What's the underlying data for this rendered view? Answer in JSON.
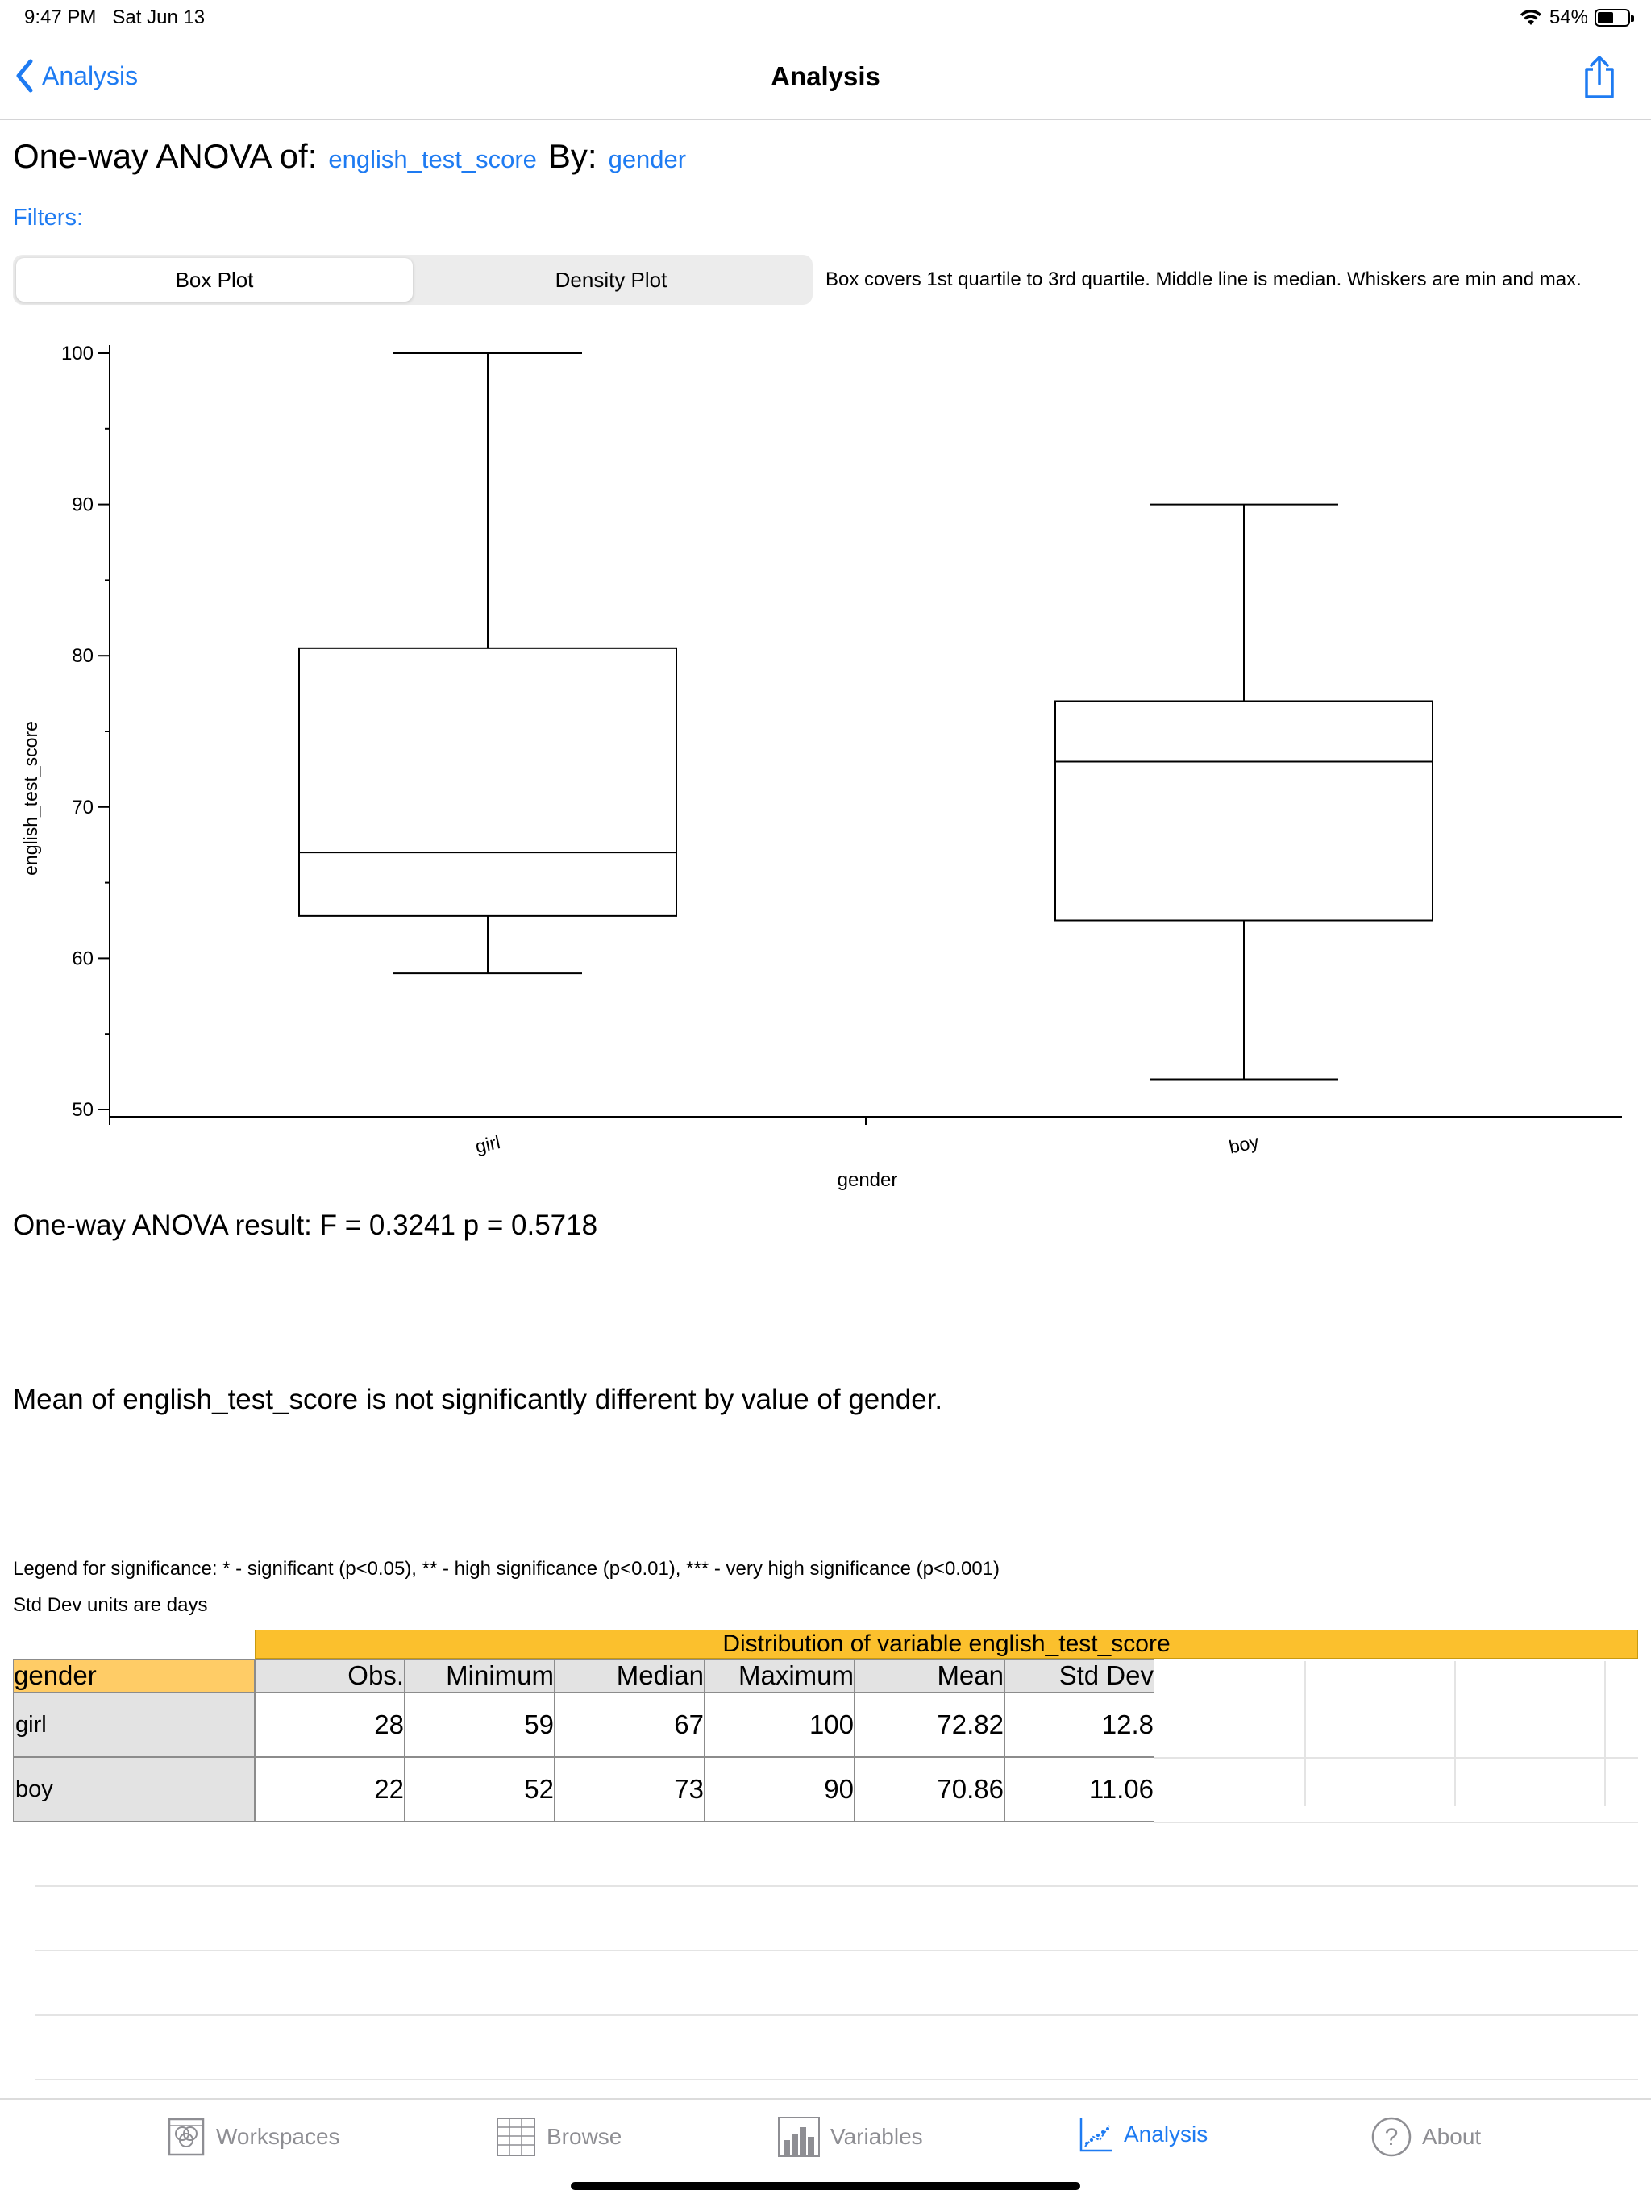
{
  "status_bar": {
    "time": "9:47 PM",
    "date": "Sat Jun 13",
    "battery": "54%",
    "battery_level": 0.54,
    "wifi_icon": "wifi-icon"
  },
  "nav": {
    "back_label": "Analysis",
    "title": "Analysis",
    "share_icon": "share-icon"
  },
  "heading": {
    "prefix": "One-way ANOVA of:",
    "variable": "english_test_score",
    "by_label": "By:",
    "by_variable": "gender"
  },
  "filters_label": "Filters:",
  "segmented": {
    "options": [
      "Box Plot",
      "Density Plot"
    ],
    "selected": "Box Plot"
  },
  "box_note": "Box covers 1st quartile to 3rd quartile. Middle line is median. Whiskers are min and max.",
  "chart_data": {
    "type": "box",
    "xlabel": "gender",
    "ylabel": "english_test_score",
    "ylim": [
      50,
      100
    ],
    "yticks": [
      50,
      60,
      70,
      80,
      90,
      100
    ],
    "categories": [
      "girl",
      "boy"
    ],
    "boxes": [
      {
        "category": "girl",
        "min": 59,
        "q1": 62.8,
        "median": 67,
        "q3": 80.5,
        "max": 100
      },
      {
        "category": "boy",
        "min": 52,
        "q1": 62.5,
        "median": 73,
        "q3": 77,
        "max": 90
      }
    ],
    "grid": false
  },
  "result": {
    "anova": "One-way ANOVA result:  F = 0.3241  p = 0.5718",
    "conclusion": "Mean of english_test_score is not significantly different by value of gender."
  },
  "legend": "Legend for significance: * - significant (p<0.05), ** - high significance (p<0.01), *** - very high significance (p<0.001)",
  "units_note": "Std Dev units are days",
  "table": {
    "title": "Distribution of variable english_test_score",
    "row_header": "gender",
    "columns": [
      "Obs.",
      "Minimum",
      "Median",
      "Maximum",
      "Mean",
      "Std Dev"
    ],
    "rows": [
      {
        "label": "girl",
        "values": [
          "28",
          "59",
          "67",
          "100",
          "72.82",
          "12.8"
        ]
      },
      {
        "label": "boy",
        "values": [
          "22",
          "52",
          "73",
          "90",
          "70.86",
          "11.06"
        ]
      }
    ],
    "header_color": "#fbc02d",
    "row_header_color": "#ffcc66"
  },
  "tabs": [
    {
      "label": "Workspaces",
      "icon": "workspaces-icon"
    },
    {
      "label": "Browse",
      "icon": "browse-grid-icon"
    },
    {
      "label": "Variables",
      "icon": "variables-chart-icon"
    },
    {
      "label": "Analysis",
      "icon": "analysis-chart-icon",
      "active": true
    },
    {
      "label": "About",
      "icon": "about-question-icon"
    }
  ],
  "accent_color": "#1e7bf2"
}
